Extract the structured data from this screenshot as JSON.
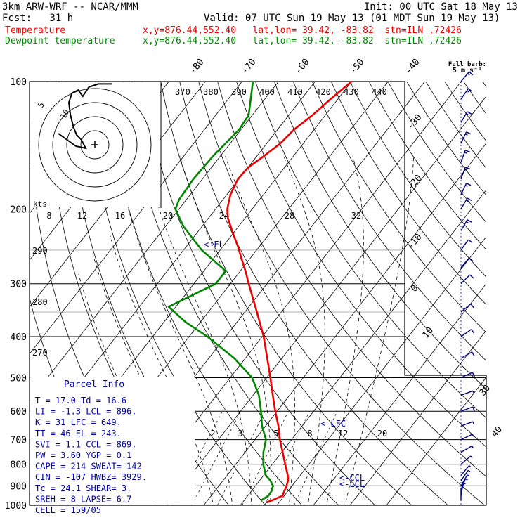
{
  "header": {
    "line1_left": "3km ARW-WRF -- NCAR/MMM",
    "line1_right": "Init: 00 UTC Sat 18 May 13",
    "line2_left": "Fcst:   31 h",
    "line2_right": "Valid: 07 UTC Sun 19 May 13 (01 MDT Sun 19 May 13)",
    "temp_label": "Temperature",
    "temp_info": "x,y=876.44,552.40   lat,lon= 39.42, -83.82  stn=ILN ,72426",
    "dew_label": "Dewpoint temperature",
    "dew_info": "x,y=876.44,552.40   lat,lon= 39.42, -83.82  stn=ILN ,72426"
  },
  "colors": {
    "temperature": "#ee0000",
    "dewpoint": "#008800",
    "annotation": "#0000aa",
    "wind_barb": "#000080",
    "grid": "#000000"
  },
  "barb_legend": [
    "Full barb:",
    "5 m s⁻¹"
  ],
  "parcel_info": {
    "title": "Parcel Info",
    "rows": [
      "T  =   17.0  Td =  16.6",
      "LI =   -1.3  LCL =  896.",
      "K  =     31  LFC =  649.",
      "TT =     46  EL  =  243.",
      "SVI =   1.1  CCL =  869.",
      "PW =   3.60  YGP =   0.1",
      "CAPE =  214  SWEAT=  142",
      "CIN =  -107  HWBZ= 3929.",
      "Tc =   24.1  SHEAR=   3.",
      "SREH =    8  LAPSE=  6.7",
      "CELL = 159/05"
    ]
  },
  "hodograph": {
    "units_label": "kts",
    "ring_labels": [
      "5",
      "10"
    ]
  },
  "annotations": {
    "el": "<-EL",
    "lfc": "<-LFC",
    "ccl": "<-CCL",
    "lcl": "<-LCL"
  },
  "chart_data": {
    "type": "line",
    "diagram": "Skew-T log-P",
    "pressure_labels": [
      "100",
      "200",
      "300",
      "400",
      "500",
      "600",
      "700",
      "800",
      "900",
      "1000"
    ],
    "isotherm_labels": [
      "-80",
      "-70",
      "-60",
      "-50",
      "-40",
      "-30",
      "-20",
      "-10",
      "0",
      "10",
      "30",
      "40"
    ],
    "theta_e_labels": [
      "370",
      "380",
      "390",
      "400",
      "410",
      "420",
      "430",
      "440"
    ],
    "dry_adiabat_labels": [
      "290",
      "280",
      "270"
    ],
    "mixing_ratio_labels_upper": [
      "8",
      "12",
      "16",
      "20",
      "24",
      "28",
      "32"
    ],
    "mixing_ratio_labels_lower": [
      "2",
      "3",
      "5",
      "8",
      "12",
      "20"
    ],
    "series": [
      {
        "variable": "temperature",
        "points": [
          {
            "p": 985,
            "t": 16.5
          },
          {
            "p": 975,
            "t": 17.5
          },
          {
            "p": 950,
            "t": 19.5
          },
          {
            "p": 925,
            "t": 19.0
          },
          {
            "p": 900,
            "t": 18.5
          },
          {
            "p": 875,
            "t": 17.8
          },
          {
            "p": 850,
            "t": 16.6
          },
          {
            "p": 800,
            "t": 13.5
          },
          {
            "p": 750,
            "t": 10.3
          },
          {
            "p": 700,
            "t": 6.8
          },
          {
            "p": 650,
            "t": 3.5
          },
          {
            "p": 600,
            "t": -0.5
          },
          {
            "p": 550,
            "t": -4.6
          },
          {
            "p": 500,
            "t": -9.0
          },
          {
            "p": 450,
            "t": -14.0
          },
          {
            "p": 400,
            "t": -19.6
          },
          {
            "p": 350,
            "t": -26.7
          },
          {
            "p": 300,
            "t": -35.0
          },
          {
            "p": 280,
            "t": -38.6
          },
          {
            "p": 260,
            "t": -42.7
          },
          {
            "p": 245,
            "t": -45.9
          },
          {
            "p": 230,
            "t": -49.6
          },
          {
            "p": 210,
            "t": -54.7
          },
          {
            "p": 200,
            "t": -56.8
          },
          {
            "p": 185,
            "t": -59.0
          },
          {
            "p": 170,
            "t": -60.3
          },
          {
            "p": 160,
            "t": -60.0
          },
          {
            "p": 150,
            "t": -58.1
          },
          {
            "p": 140,
            "t": -56.3
          },
          {
            "p": 130,
            "t": -55.5
          },
          {
            "p": 120,
            "t": -53.5
          },
          {
            "p": 110,
            "t": -52.0
          },
          {
            "p": 100,
            "t": -50.0
          }
        ]
      },
      {
        "variable": "dewpoint",
        "points": [
          {
            "p": 975,
            "t": 14.6
          },
          {
            "p": 950,
            "t": 15.6
          },
          {
            "p": 925,
            "t": 15.5
          },
          {
            "p": 900,
            "t": 14.8
          },
          {
            "p": 875,
            "t": 13.0
          },
          {
            "p": 850,
            "t": 10.6
          },
          {
            "p": 800,
            "t": 7.5
          },
          {
            "p": 750,
            "t": 5.0
          },
          {
            "p": 700,
            "t": 3.0
          },
          {
            "p": 650,
            "t": -1.0
          },
          {
            "p": 600,
            "t": -4.4
          },
          {
            "p": 550,
            "t": -8.4
          },
          {
            "p": 500,
            "t": -14.0
          },
          {
            "p": 450,
            "t": -23.0
          },
          {
            "p": 400,
            "t": -35.0
          },
          {
            "p": 370,
            "t": -44.0
          },
          {
            "p": 340,
            "t": -52.0
          },
          {
            "p": 300,
            "t": -44.0
          },
          {
            "p": 280,
            "t": -44.0
          },
          {
            "p": 250,
            "t": -55.0
          },
          {
            "p": 220,
            "t": -65.0
          },
          {
            "p": 200,
            "t": -71.0
          },
          {
            "p": 190,
            "t": -72.0
          },
          {
            "p": 170,
            "t": -72.5
          },
          {
            "p": 150,
            "t": -72.0
          },
          {
            "p": 130,
            "t": -70.5
          },
          {
            "p": 120,
            "t": -71.0
          },
          {
            "p": 100,
            "t": -77.0
          }
        ]
      }
    ],
    "wind_profile": [
      {
        "p": 975,
        "speed_ms": 5,
        "dir_deg": 180
      },
      {
        "p": 950,
        "speed_ms": 5,
        "dir_deg": 190
      },
      {
        "p": 925,
        "speed_ms": 5,
        "dir_deg": 200
      },
      {
        "p": 900,
        "speed_ms": 5,
        "dir_deg": 210
      },
      {
        "p": 875,
        "speed_ms": 5,
        "dir_deg": 215
      },
      {
        "p": 850,
        "speed_ms": 5,
        "dir_deg": 220
      },
      {
        "p": 800,
        "speed_ms": 5,
        "dir_deg": 230
      },
      {
        "p": 750,
        "speed_ms": 5,
        "dir_deg": 240
      },
      {
        "p": 700,
        "speed_ms": 5,
        "dir_deg": 245
      },
      {
        "p": 650,
        "speed_ms": 5,
        "dir_deg": 250
      },
      {
        "p": 600,
        "speed_ms": 10,
        "dir_deg": 250
      },
      {
        "p": 550,
        "speed_ms": 5,
        "dir_deg": 250
      },
      {
        "p": 500,
        "speed_ms": 10,
        "dir_deg": 245
      },
      {
        "p": 450,
        "speed_ms": 10,
        "dir_deg": 240
      },
      {
        "p": 400,
        "speed_ms": 10,
        "dir_deg": 235
      },
      {
        "p": 350,
        "speed_ms": 10,
        "dir_deg": 230
      },
      {
        "p": 300,
        "speed_ms": 10,
        "dir_deg": 225
      },
      {
        "p": 275,
        "speed_ms": 10,
        "dir_deg": 220
      },
      {
        "p": 250,
        "speed_ms": 10,
        "dir_deg": 215
      },
      {
        "p": 225,
        "speed_ms": 15,
        "dir_deg": 210
      },
      {
        "p": 200,
        "speed_ms": 15,
        "dir_deg": 210
      },
      {
        "p": 185,
        "speed_ms": 15,
        "dir_deg": 205
      },
      {
        "p": 170,
        "speed_ms": 15,
        "dir_deg": 200
      },
      {
        "p": 155,
        "speed_ms": 15,
        "dir_deg": 200
      },
      {
        "p": 140,
        "speed_ms": 15,
        "dir_deg": 205
      },
      {
        "p": 125,
        "speed_ms": 15,
        "dir_deg": 210
      },
      {
        "p": 110,
        "speed_ms": 15,
        "dir_deg": 215
      },
      {
        "p": 100,
        "speed_ms": 15,
        "dir_deg": 220
      }
    ],
    "hodograph_path_kts": [
      [
        -2,
        2
      ],
      [
        -5,
        5
      ],
      [
        -7,
        10
      ],
      [
        -9,
        18
      ],
      [
        -10,
        26
      ],
      [
        -8,
        32
      ],
      [
        -4,
        34
      ],
      [
        -1,
        30
      ],
      [
        3,
        36
      ],
      [
        9,
        38
      ],
      [
        18,
        38
      ]
    ]
  }
}
